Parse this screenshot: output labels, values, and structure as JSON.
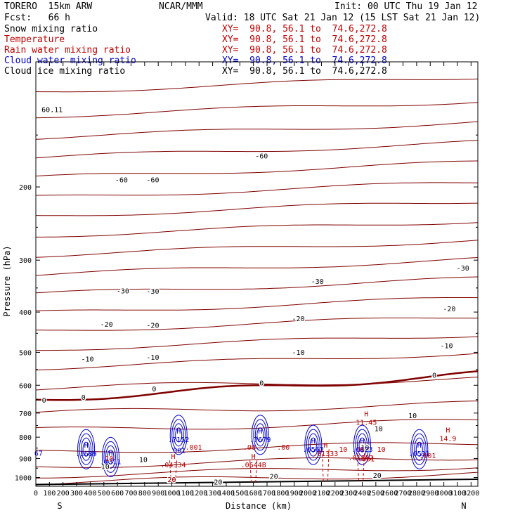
{
  "header": {
    "model": "TORERO  15km ARW",
    "center": "NCAR/MMM",
    "init": "Init: 00 UTC Thu 19 Jan 12",
    "fcst": "Fcst:   66 h",
    "valid": "Valid: 18 UTC Sat 21 Jan 12 (15 LST Sat 21 Jan 12)"
  },
  "legend": [
    {
      "name": "Snow mixing ratio",
      "color": "#000000",
      "xy": "XY=  90.8, 56.1 to  74.6,272.8",
      "xy_color": "#c00000"
    },
    {
      "name": "Temperature",
      "color": "#c00000",
      "xy": "XY=  90.8, 56.1 to  74.6,272.8",
      "xy_color": "#c00000"
    },
    {
      "name": "Rain water mixing ratio",
      "color": "#c00000",
      "xy": "XY=  90.8, 56.1 to  74.6,272.8",
      "xy_color": "#c00000"
    },
    {
      "name": "Cloud water mixing ratio",
      "color": "#0000cc",
      "xy": "XY=  90.8, 56.1 to  74.6,272.8",
      "xy_color": "#0000cc"
    },
    {
      "name": "Cloud ice mixing ratio",
      "color": "#000000",
      "xy": "XY=  90.8, 56.1 to  74.6,272.8",
      "xy_color": "#000000"
    }
  ],
  "chart_data": {
    "type": "cross-section contour",
    "xlabel": "Distance (km)",
    "ylabel": "Pressure (hPa)",
    "xlim": [
      0,
      3250
    ],
    "ylim": [
      1050,
      100
    ],
    "y_scale": "log",
    "x_ticks": [
      0,
      100,
      200,
      300,
      400,
      500,
      600,
      700,
      800,
      900,
      1000,
      1100,
      1200,
      1300,
      1400,
      1500,
      1600,
      1700,
      1800,
      1900,
      2000,
      2100,
      2200,
      2300,
      2400,
      2500,
      2600,
      2700,
      2800,
      2900,
      3000,
      3100,
      3200
    ],
    "x_tick_labels": [
      "0",
      "100",
      "200",
      "300",
      "400",
      "500",
      "600",
      "700",
      "800",
      "900",
      "1000",
      "1100",
      "1200",
      "1300",
      "1400",
      "1500",
      "1600",
      "1700",
      "1800",
      "1900",
      "2000",
      "2100",
      "2200",
      "2300",
      "2400",
      "2500",
      "2600",
      "2700",
      "2800",
      "2900",
      "3000",
      "3100",
      "3200"
    ],
    "y_ticks": [
      200,
      300,
      400,
      500,
      600,
      700,
      800,
      900,
      1000
    ],
    "y_tick_labels": [
      "200",
      "300",
      "400",
      "500",
      "600",
      "700",
      "800",
      "900",
      "1000"
    ],
    "end_labels": {
      "left": "S",
      "right": "N"
    },
    "temperature_contours_degC": [
      {
        "level": -60,
        "labels": [
          {
            "text": "-60",
            "x": 630,
            "y": 192
          },
          {
            "text": "-60",
            "x": 860,
            "y": 192
          },
          {
            "text": "-60",
            "x": 1660,
            "y": 168
          }
        ]
      },
      {
        "level": -30,
        "labels": [
          {
            "text": "-30",
            "x": 640,
            "y": 355
          },
          {
            "text": "-30",
            "x": 860,
            "y": 356
          },
          {
            "text": "-30",
            "x": 2070,
            "y": 337
          },
          {
            "text": "-30",
            "x": 3140,
            "y": 313
          }
        ]
      },
      {
        "level": -20,
        "labels": [
          {
            "text": "-20",
            "x": 520,
            "y": 427
          },
          {
            "text": "-20",
            "x": 860,
            "y": 430
          },
          {
            "text": "-20",
            "x": 1930,
            "y": 414
          },
          {
            "text": "-20",
            "x": 3040,
            "y": 392
          }
        ]
      },
      {
        "level": -10,
        "labels": [
          {
            "text": "-10",
            "x": 380,
            "y": 518
          },
          {
            "text": "-10",
            "x": 860,
            "y": 513
          },
          {
            "text": "-10",
            "x": 1930,
            "y": 499
          },
          {
            "text": "-10",
            "x": 3020,
            "y": 481
          }
        ]
      },
      {
        "level": 0,
        "labels": [
          {
            "text": "0",
            "x": 60,
            "y": 650
          },
          {
            "text": "0",
            "x": 350,
            "y": 640
          },
          {
            "text": "0",
            "x": 870,
            "y": 611
          },
          {
            "text": "0",
            "x": 1660,
            "y": 591
          },
          {
            "text": "0",
            "x": 2930,
            "y": 567
          }
        ]
      },
      {
        "level": 10,
        "labels": [
          {
            "text": "10",
            "x": 2770,
            "y": 708
          },
          {
            "text": "10",
            "x": 2520,
            "y": 762
          },
          {
            "text": "10",
            "x": 2420,
            "y": 846
          },
          {
            "text": "10",
            "x": 790,
            "y": 904
          },
          {
            "text": "10",
            "x": 510,
            "y": 940
          }
        ]
      },
      {
        "level": 20,
        "labels": [
          {
            "text": "20",
            "x": 1000,
            "y": 1010
          },
          {
            "text": "20",
            "x": 1340,
            "y": 1023
          },
          {
            "text": "20",
            "x": 1750,
            "y": 992
          },
          {
            "text": "20",
            "x": 2510,
            "y": 987
          }
        ]
      }
    ],
    "cloud_water_maxima": [
      {
        "label": "H",
        "value": ".7152",
        "x": 1050,
        "y": 790
      },
      {
        "label": "H",
        "value": ".7679",
        "x": 1650,
        "y": 790
      },
      {
        "label": "H",
        "value": ".6562",
        "x": 2040,
        "y": 835
      },
      {
        "label": "H",
        "value": ".6823",
        "x": 2400,
        "y": 835
      },
      {
        "label": "H",
        "value": ".1689",
        "x": 370,
        "y": 855
      },
      {
        "label": "H",
        "value": ".0531",
        "x": 2820,
        "y": 855
      },
      {
        "label": "H",
        "value": ".0311",
        "x": 550,
        "y": 893
      }
    ],
    "rain_water_maxima": [
      {
        "label": "H",
        "value": ".04334",
        "x": 1010,
        "y": 910
      },
      {
        "label": "H",
        "value": ".0644B",
        "x": 1600,
        "y": 910
      },
      {
        "label": "H",
        "value": ".01333",
        "x": 2130,
        "y": 855
      },
      {
        "label": "H",
        "value": ".01852",
        "x": 2390,
        "y": 875
      }
    ],
    "temperature_maxima": [
      {
        "label": "H",
        "value": "11.45",
        "x": 2430,
        "y": 718
      },
      {
        "label": "H",
        "value": "14.9",
        "x": 3030,
        "y": 785
      }
    ],
    "other_labels": [
      {
        "text": ".001",
        "x": 1040,
        "y": 860,
        "color": "#0000cc"
      },
      {
        "text": ".001",
        "x": 1160,
        "y": 845,
        "color": "#c00000"
      },
      {
        "text": ".001",
        "x": 2430,
        "y": 900,
        "color": "#c00000"
      },
      {
        "text": ".001",
        "x": 2880,
        "y": 885,
        "color": "#c00000"
      },
      {
        "text": ".00",
        "x": 1570,
        "y": 845,
        "color": "#c00000"
      },
      {
        "text": ".00",
        "x": 1820,
        "y": 845,
        "color": "#c00000"
      },
      {
        "text": "10",
        "x": 2260,
        "y": 855,
        "color": "#c00000"
      },
      {
        "text": "10",
        "x": 2540,
        "y": 855,
        "color": "#c00000"
      },
      {
        "text": "10",
        "x": 540,
        "y": 898,
        "color": "#c00000"
      },
      {
        "text": "20",
        "x": 1000,
        "y": 1010,
        "color": "#c00000"
      },
      {
        "text": "67",
        "x": 20,
        "y": 873,
        "color": "#0000cc"
      },
      {
        "text": "60.11",
        "x": 120,
        "y": 130,
        "color": "#000000"
      }
    ],
    "colors": {
      "temperature": "#800000",
      "freezing_line": "#800000",
      "cloud_water": "#0000cc",
      "rain_water": "#c00000",
      "terrain": "#000000"
    }
  }
}
